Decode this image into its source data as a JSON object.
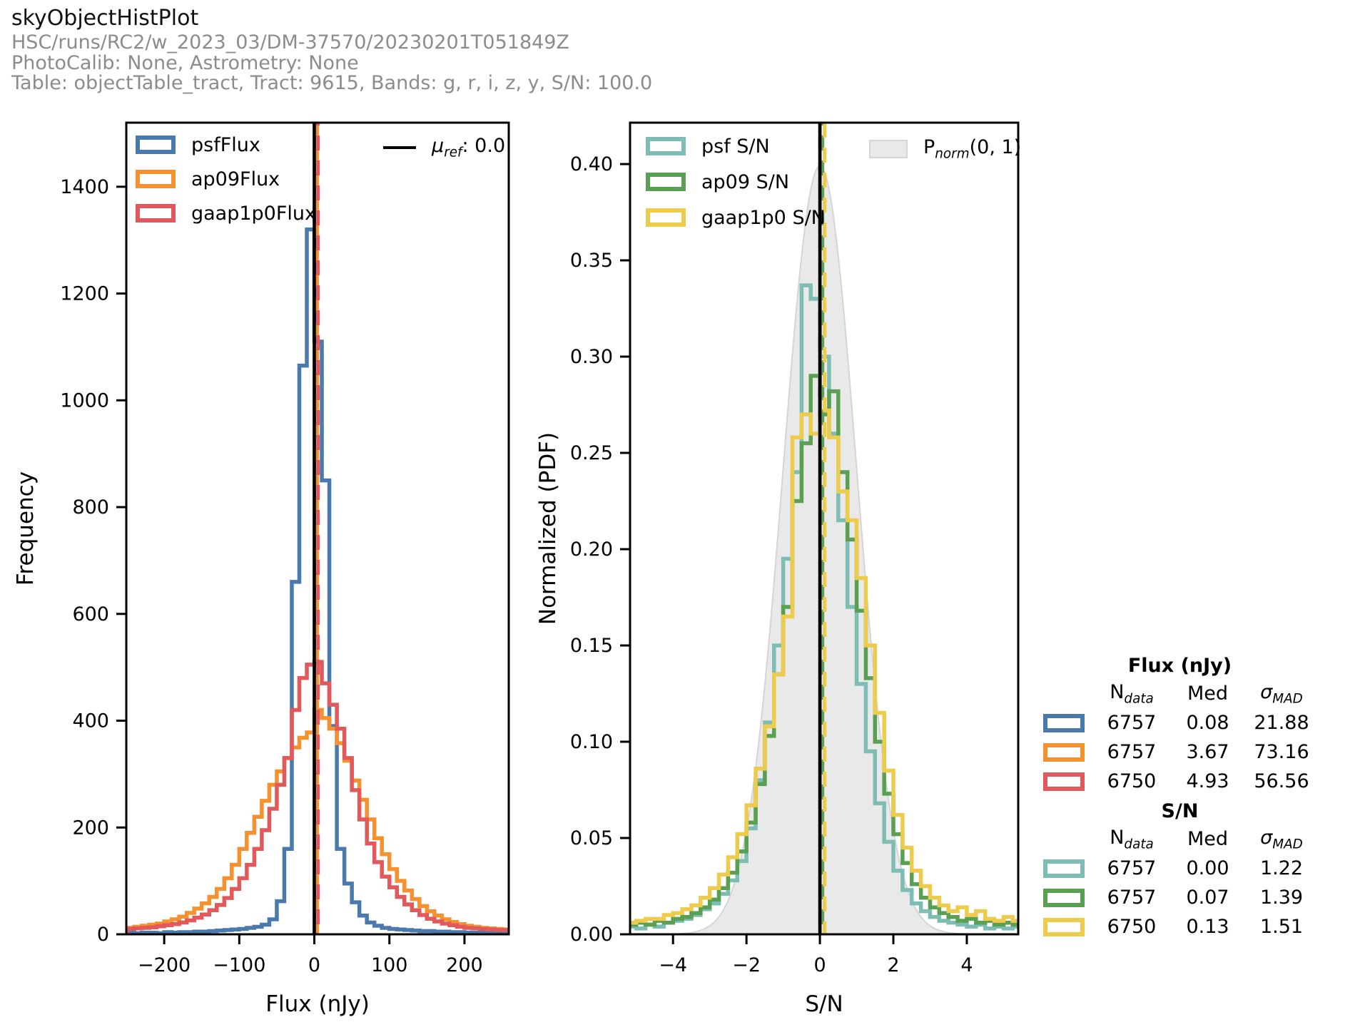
{
  "header": {
    "title": "skyObjectHistPlot",
    "run": "HSC/runs/RC2/w_2023_03/DM-37570/20230201T051849Z",
    "calib": "PhotoCalib: None, Astrometry: None",
    "table_info": "Table: objectTable_tract, Tract: 9615, Bands: g, r, i, z, y, S/N: 100.0"
  },
  "colors": {
    "psfFlux": "#4a7aad",
    "ap09Flux": "#f6912f",
    "gaap1p0Flux": "#e2595c",
    "psf_sn": "#7ebdb4",
    "ap09_sn": "#5aa052",
    "gaap1p0_sn": "#eccb4d",
    "ref_line": "#000000",
    "norm_fill": "#e9e9e9",
    "norm_edge": "#d5d5d5"
  },
  "legend_left": {
    "items": [
      {
        "label": "psfFlux",
        "color": "#4a7aad"
      },
      {
        "label": "ap09Flux",
        "color": "#f6912f"
      },
      {
        "label": "gaap1p0Flux",
        "color": "#e2595c"
      }
    ]
  },
  "ref_legend": {
    "mu": "μ",
    "sub": "ref",
    "rest": ": 0.0"
  },
  "legend_right": {
    "items": [
      {
        "label": "psf S/N",
        "color": "#7ebdb4"
      },
      {
        "label": "ap09 S/N",
        "color": "#5aa052"
      },
      {
        "label": "gaap1p0 S/N",
        "color": "#eccb4d"
      }
    ]
  },
  "pnorm_legend": {
    "p": "P",
    "sub": "norm",
    "rest": "(0, 1)"
  },
  "chart_data": [
    {
      "type": "bar",
      "subtype": "step-histogram",
      "title": "",
      "xlabel": "Flux (nJy)",
      "ylabel": "Frequency",
      "xlim": [
        -250.5,
        259
      ],
      "ylim": [
        0,
        1520
      ],
      "xticks": [
        -200,
        -100,
        0,
        100,
        200
      ],
      "xtick_labels": [
        "−200",
        "−100",
        "0",
        "100",
        "200"
      ],
      "yticks": [
        0,
        200,
        400,
        600,
        800,
        1000,
        1200,
        1400
      ],
      "ytick_labels": [
        "0",
        "200",
        "400",
        "600",
        "800",
        "1000",
        "1200",
        "1400"
      ],
      "bin_start": -250,
      "bin_width": 10,
      "series": [
        {
          "name": "psfFlux",
          "color": "#4a7aad",
          "values": [
            3,
            2,
            3,
            3,
            2,
            4,
            3,
            4,
            4,
            5,
            5,
            6,
            7,
            8,
            9,
            10,
            12,
            14,
            18,
            28,
            62,
            160,
            660,
            1065,
            1320,
            1110,
            850,
            390,
            160,
            95,
            60,
            35,
            22,
            16,
            12,
            10,
            9,
            8,
            7,
            6,
            6,
            5,
            5,
            4,
            4,
            3,
            3,
            3,
            2,
            3,
            2
          ]
        },
        {
          "name": "ap09Flux",
          "color": "#f6912f",
          "values": [
            12,
            14,
            16,
            18,
            20,
            24,
            28,
            33,
            40,
            48,
            58,
            70,
            85,
            105,
            130,
            160,
            190,
            220,
            250,
            280,
            305,
            330,
            350,
            368,
            378,
            420,
            405,
            385,
            358,
            325,
            288,
            252,
            215,
            180,
            150,
            122,
            100,
            82,
            66,
            53,
            43,
            35,
            28,
            23,
            19,
            16,
            14,
            12,
            11,
            10,
            9
          ]
        },
        {
          "name": "gaap1p0Flux",
          "color": "#e2595c",
          "values": [
            10,
            11,
            12,
            13,
            15,
            17,
            19,
            22,
            26,
            31,
            37,
            45,
            55,
            68,
            85,
            105,
            130,
            160,
            195,
            235,
            280,
            330,
            420,
            480,
            505,
            510,
            470,
            430,
            385,
            330,
            270,
            215,
            170,
            135,
            108,
            88,
            70,
            56,
            45,
            36,
            29,
            24,
            20,
            17,
            14,
            12,
            11,
            10,
            9,
            8,
            8
          ]
        }
      ],
      "ref_lines": [
        {
          "x": 0,
          "style": "solid",
          "color": "#000000",
          "label": "μref: 0.0"
        },
        {
          "x": 3.67,
          "style": "dashed",
          "color": "#f6912f"
        },
        {
          "x": 4.93,
          "style": "dashed",
          "color": "#e2595c"
        }
      ]
    },
    {
      "type": "bar",
      "subtype": "step-histogram-pdf",
      "title": "",
      "xlabel": "S/N",
      "ylabel": "Normalized (PDF)",
      "xlim": [
        -5.17,
        5.4
      ],
      "ylim": [
        0,
        0.4215
      ],
      "xticks": [
        -4,
        -2,
        0,
        2,
        4
      ],
      "xtick_labels": [
        "−4",
        "−2",
        "0",
        "2",
        "4"
      ],
      "yticks": [
        0,
        0.05,
        0.1,
        0.15,
        0.2,
        0.25,
        0.3,
        0.35,
        0.4
      ],
      "ytick_labels": [
        "0.00",
        "0.05",
        "0.10",
        "0.15",
        "0.20",
        "0.25",
        "0.30",
        "0.35",
        "0.40"
      ],
      "bin_start": -5.25,
      "bin_width": 0.25,
      "series": [
        {
          "name": "psf S/N",
          "color": "#7ebdb4",
          "values": [
            0.004,
            0.003,
            0.005,
            0.004,
            0.006,
            0.007,
            0.008,
            0.01,
            0.013,
            0.016,
            0.021,
            0.028,
            0.038,
            0.055,
            0.08,
            0.11,
            0.15,
            0.195,
            0.24,
            0.337,
            0.33,
            0.3,
            0.26,
            0.215,
            0.17,
            0.13,
            0.095,
            0.068,
            0.048,
            0.033,
            0.023,
            0.016,
            0.012,
            0.009,
            0.007,
            0.006,
            0.005,
            0.004,
            0.005,
            0.003,
            0.004,
            0.003,
            0.004
          ]
        },
        {
          "name": "ap09 S/N",
          "color": "#5aa052",
          "values": [
            0.005,
            0.006,
            0.005,
            0.007,
            0.006,
            0.008,
            0.009,
            0.011,
            0.014,
            0.018,
            0.024,
            0.032,
            0.043,
            0.058,
            0.078,
            0.103,
            0.135,
            0.17,
            0.225,
            0.255,
            0.29,
            0.27,
            0.282,
            0.24,
            0.205,
            0.168,
            0.133,
            0.1,
            0.073,
            0.052,
            0.037,
            0.026,
            0.019,
            0.014,
            0.011,
            0.009,
            0.007,
            0.008,
            0.006,
            0.007,
            0.005,
            0.006,
            0.005
          ]
        },
        {
          "name": "gaap1p0 S/N",
          "color": "#eccb4d",
          "values": [
            0.006,
            0.007,
            0.008,
            0.008,
            0.01,
            0.011,
            0.013,
            0.015,
            0.019,
            0.024,
            0.031,
            0.04,
            0.052,
            0.067,
            0.086,
            0.108,
            0.135,
            0.165,
            0.258,
            0.27,
            0.26,
            0.272,
            0.258,
            0.23,
            0.215,
            0.185,
            0.15,
            0.115,
            0.085,
            0.062,
            0.045,
            0.033,
            0.025,
            0.019,
            0.015,
            0.012,
            0.014,
            0.01,
            0.012,
            0.008,
            0.007,
            0.009,
            0.007
          ]
        }
      ],
      "normal_overlay": {
        "label": "Pnorm(0, 1)",
        "mu": 0,
        "sigma": 1,
        "peak": 0.3989,
        "fill": "#e9e9e9",
        "edge": "#d5d5d5"
      },
      "ref_lines": [
        {
          "x": 0,
          "style": "solid",
          "color": "#000000"
        },
        {
          "x": 0.0,
          "style": "dashed",
          "color": "#7ebdb4"
        },
        {
          "x": 0.07,
          "style": "dashed",
          "color": "#5aa052"
        },
        {
          "x": 0.13,
          "style": "dashed",
          "color": "#eccb4d"
        }
      ]
    }
  ],
  "stats": {
    "headers": {
      "n": "N",
      "n_sub": "data",
      "med": "Med",
      "sigma": "σ",
      "sigma_sub": "MAD"
    },
    "flux": {
      "title": "Flux (nJy)",
      "rows": [
        {
          "n": "6757",
          "med": "0.08",
          "sigma": "21.88",
          "color": "#4a7aad"
        },
        {
          "n": "6757",
          "med": "3.67",
          "sigma": "73.16",
          "color": "#f6912f"
        },
        {
          "n": "6750",
          "med": "4.93",
          "sigma": "56.56",
          "color": "#e2595c"
        }
      ]
    },
    "sn": {
      "title": "S/N",
      "rows": [
        {
          "n": "6757",
          "med": "0.00",
          "sigma": "1.22",
          "color": "#7ebdb4"
        },
        {
          "n": "6757",
          "med": "0.07",
          "sigma": "1.39",
          "color": "#5aa052"
        },
        {
          "n": "6750",
          "med": "0.13",
          "sigma": "1.51",
          "color": "#eccb4d"
        }
      ]
    }
  }
}
